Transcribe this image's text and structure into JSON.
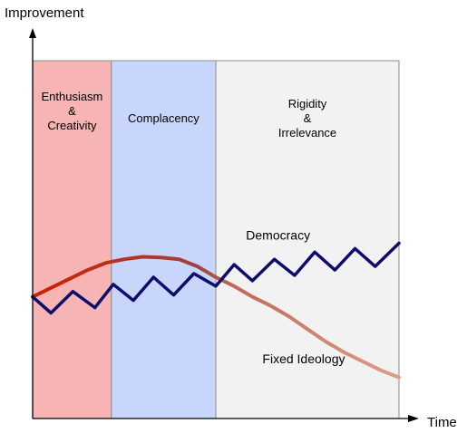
{
  "chart_data": {
    "type": "line",
    "title": "",
    "ylabel": "Improvement",
    "xlabel": "Time",
    "xlim": [
      0,
      100
    ],
    "ylim": [
      0,
      100
    ],
    "grid": false,
    "ticks": false,
    "bands": [
      {
        "x0": 0,
        "x1": 21.5,
        "lines": [
          "Enthusiasm",
          "&",
          "Creativity"
        ],
        "color": "#f6b4b4"
      },
      {
        "x0": 21.5,
        "x1": 50,
        "lines": [
          "Complacency"
        ],
        "color": "#c9d6fb"
      },
      {
        "x0": 50,
        "x1": 100,
        "lines": [
          "Rigidity",
          "&",
          "Irrelevance"
        ],
        "color": "#f2f2f2"
      }
    ],
    "series": [
      {
        "name": "Democracy",
        "color": "#0d0d6b",
        "points": [
          [
            0,
            34
          ],
          [
            5,
            29.5
          ],
          [
            11,
            35.5
          ],
          [
            17,
            31
          ],
          [
            22,
            37.5
          ],
          [
            27.5,
            33
          ],
          [
            33,
            39.5
          ],
          [
            38.5,
            34.5
          ],
          [
            44,
            40.5
          ],
          [
            50,
            37
          ],
          [
            55,
            43
          ],
          [
            60,
            38.5
          ],
          [
            66,
            44.5
          ],
          [
            71.5,
            40
          ],
          [
            77,
            46.5
          ],
          [
            82.5,
            41.5
          ],
          [
            88,
            47.5
          ],
          [
            93.5,
            42.5
          ],
          [
            100,
            49
          ]
        ]
      },
      {
        "name": "Fixed Ideology",
        "color_gradient": [
          "#cc2200",
          "#a04040",
          "#dba088"
        ],
        "points": [
          [
            0,
            34
          ],
          [
            5,
            36.5
          ],
          [
            10,
            39
          ],
          [
            15,
            41.5
          ],
          [
            20,
            43.5
          ],
          [
            25,
            44.5
          ],
          [
            30,
            45.2
          ],
          [
            35,
            45
          ],
          [
            40,
            44.5
          ],
          [
            45,
            42.5
          ],
          [
            50,
            39.5
          ],
          [
            55,
            37
          ],
          [
            60,
            34
          ],
          [
            65,
            31.5
          ],
          [
            70,
            28.5
          ],
          [
            75,
            25
          ],
          [
            80,
            21.5
          ],
          [
            85,
            18.5
          ],
          [
            90,
            16
          ],
          [
            95,
            13.5
          ],
          [
            100,
            11.5
          ]
        ]
      }
    ],
    "annotations": [
      {
        "text": "Democracy",
        "x": 67,
        "y": 50
      },
      {
        "text": "Fixed Ideology",
        "x": 74,
        "y": 15.5
      }
    ]
  }
}
